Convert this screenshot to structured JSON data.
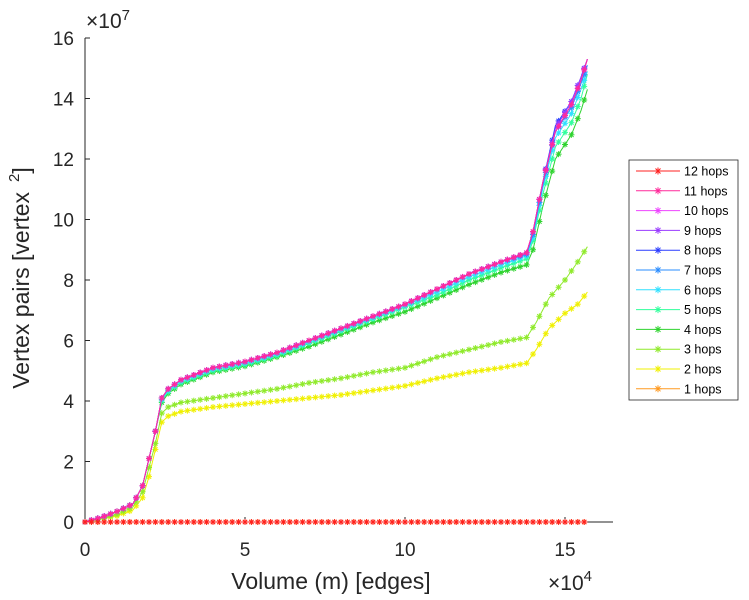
{
  "chart_data": {
    "type": "line",
    "title": "",
    "xlabel": "Volume (m) [edges]",
    "ylabel_main": "Vertex pairs [vertex",
    "ylabel_sup": "2",
    "ylabel_close": "]",
    "x_multiplier_base": "×10",
    "x_multiplier_exp": "4",
    "y_multiplier_base": "×10",
    "y_multiplier_exp": "7",
    "xlim": [
      0,
      16.5
    ],
    "ylim": [
      0,
      16
    ],
    "x_ticks": [
      0,
      5,
      10,
      15
    ],
    "x_tick_labels": [
      "0",
      "5",
      "10",
      "15"
    ],
    "y_ticks": [
      0,
      2,
      4,
      6,
      8,
      10,
      12,
      14,
      16
    ],
    "y_tick_labels": [
      "0",
      "2",
      "4",
      "6",
      "8",
      "10",
      "12",
      "14",
      "16"
    ],
    "grid": false,
    "legend_position": "right",
    "series": [
      {
        "name": "12 hops",
        "color": "#ff2020",
        "x": [
          0,
          1,
          2,
          3,
          4,
          5,
          6,
          7,
          8,
          9,
          10,
          11,
          12,
          13,
          14,
          15,
          15.7
        ],
        "y": [
          0,
          0,
          0,
          0,
          0,
          0,
          0,
          0,
          0,
          0,
          0,
          0,
          0,
          0,
          0,
          0,
          0
        ]
      },
      {
        "name": "11 hops",
        "color": "#ff2a9a",
        "x": [
          0,
          0.5,
          1,
          1.5,
          1.8,
          2.0,
          2.2,
          2.4,
          2.6,
          3,
          4,
          5,
          6,
          7,
          8,
          9,
          10,
          11,
          12,
          13,
          13.8,
          14.0,
          14.3,
          14.7,
          15.2,
          15.5,
          15.7
        ],
        "y": [
          0,
          0.15,
          0.35,
          0.6,
          1.2,
          2.1,
          3.0,
          4.1,
          4.4,
          4.7,
          5.1,
          5.3,
          5.6,
          6.0,
          6.4,
          6.8,
          7.2,
          7.7,
          8.2,
          8.6,
          8.9,
          9.6,
          11.2,
          12.9,
          13.8,
          14.6,
          15.3
        ]
      },
      {
        "name": "10 hops",
        "color": "#ee44ff",
        "x": [
          0,
          0.5,
          1,
          1.5,
          1.8,
          2.0,
          2.2,
          2.4,
          2.6,
          3,
          4,
          5,
          6,
          7,
          8,
          9,
          10,
          11,
          12,
          13,
          13.8,
          14.0,
          14.3,
          14.7,
          15.2,
          15.5,
          15.7
        ],
        "y": [
          0,
          0.15,
          0.35,
          0.6,
          1.2,
          2.1,
          3.0,
          4.1,
          4.4,
          4.7,
          5.1,
          5.3,
          5.6,
          6.0,
          6.4,
          6.8,
          7.2,
          7.7,
          8.2,
          8.6,
          8.9,
          9.6,
          11.2,
          12.9,
          13.8,
          14.6,
          15.3
        ]
      },
      {
        "name": "9 hops",
        "color": "#9a3cff",
        "x": [
          0,
          0.5,
          1,
          1.5,
          1.8,
          2.0,
          2.2,
          2.4,
          2.6,
          3,
          4,
          5,
          6,
          7,
          8,
          9,
          10,
          11,
          12,
          13,
          13.8,
          14.0,
          14.3,
          14.7,
          15.2,
          15.5,
          15.7
        ],
        "y": [
          0,
          0.15,
          0.35,
          0.6,
          1.2,
          2.1,
          3.0,
          4.1,
          4.4,
          4.7,
          5.1,
          5.3,
          5.6,
          6.0,
          6.4,
          6.8,
          7.2,
          7.7,
          8.2,
          8.6,
          8.9,
          9.6,
          11.2,
          13.0,
          13.9,
          14.7,
          15.3
        ]
      },
      {
        "name": "8 hops",
        "color": "#2a3cff",
        "x": [
          0,
          0.5,
          1,
          1.5,
          1.8,
          2.0,
          2.2,
          2.4,
          2.6,
          3,
          4,
          5,
          6,
          7,
          8,
          9,
          10,
          11,
          12,
          13,
          13.8,
          14.0,
          14.3,
          14.7,
          15.2,
          15.5,
          15.7
        ],
        "y": [
          0,
          0.15,
          0.35,
          0.6,
          1.2,
          2.1,
          3.0,
          4.1,
          4.4,
          4.7,
          5.1,
          5.3,
          5.6,
          6.0,
          6.4,
          6.8,
          7.2,
          7.7,
          8.2,
          8.6,
          8.9,
          9.6,
          11.2,
          13.1,
          13.9,
          14.7,
          15.3
        ]
      },
      {
        "name": "7 hops",
        "color": "#2a8cff",
        "x": [
          0,
          0.5,
          1,
          1.5,
          1.8,
          2.0,
          2.2,
          2.4,
          2.6,
          3,
          4,
          5,
          6,
          7,
          8,
          9,
          10,
          11,
          12,
          13,
          13.8,
          14.0,
          14.3,
          14.7,
          15.2,
          15.5,
          15.7
        ],
        "y": [
          0,
          0.15,
          0.35,
          0.6,
          1.2,
          2.1,
          3.0,
          4.1,
          4.4,
          4.7,
          5.1,
          5.3,
          5.6,
          6.0,
          6.4,
          6.8,
          7.2,
          7.7,
          8.2,
          8.6,
          8.85,
          9.5,
          11.1,
          12.9,
          13.7,
          14.5,
          15.1
        ]
      },
      {
        "name": "6 hops",
        "color": "#30e0ff",
        "x": [
          0,
          0.5,
          1,
          1.5,
          1.8,
          2.0,
          2.2,
          2.4,
          2.6,
          3,
          4,
          5,
          6,
          7,
          8,
          9,
          10,
          11,
          12,
          13,
          13.8,
          14.0,
          14.3,
          14.7,
          15.2,
          15.5,
          15.7
        ],
        "y": [
          0,
          0.15,
          0.35,
          0.6,
          1.2,
          2.1,
          3.0,
          4.05,
          4.35,
          4.65,
          5.05,
          5.25,
          5.55,
          5.95,
          6.35,
          6.75,
          7.15,
          7.6,
          8.1,
          8.5,
          8.8,
          9.4,
          11.0,
          12.7,
          13.5,
          14.3,
          14.9
        ]
      },
      {
        "name": "5 hops",
        "color": "#30ff9c",
        "x": [
          0,
          0.5,
          1,
          1.5,
          1.8,
          2.0,
          2.2,
          2.4,
          2.6,
          3,
          4,
          5,
          6,
          7,
          8,
          9,
          10,
          11,
          12,
          13,
          13.8,
          14.0,
          14.3,
          14.7,
          15.2,
          15.5,
          15.7
        ],
        "y": [
          0,
          0.15,
          0.35,
          0.6,
          1.2,
          2.1,
          3.0,
          4.0,
          4.3,
          4.6,
          5.0,
          5.2,
          5.5,
          5.9,
          6.3,
          6.7,
          7.1,
          7.5,
          8.0,
          8.4,
          8.7,
          9.3,
          10.8,
          12.4,
          13.2,
          14.0,
          14.8
        ]
      },
      {
        "name": "4 hops",
        "color": "#2ed32e",
        "x": [
          0,
          0.5,
          1,
          1.5,
          1.8,
          2.0,
          2.2,
          2.4,
          2.6,
          3,
          4,
          5,
          6,
          7,
          8,
          9,
          10,
          11,
          12,
          13,
          13.8,
          14.0,
          14.3,
          14.7,
          15.2,
          15.5,
          15.7
        ],
        "y": [
          0,
          0.15,
          0.35,
          0.6,
          1.2,
          2.1,
          3.0,
          3.95,
          4.25,
          4.55,
          4.95,
          5.15,
          5.45,
          5.8,
          6.2,
          6.6,
          6.95,
          7.4,
          7.85,
          8.25,
          8.5,
          9.0,
          10.4,
          12.0,
          12.8,
          13.6,
          14.3
        ]
      },
      {
        "name": "3 hops",
        "color": "#8fea2a",
        "x": [
          0,
          0.5,
          1,
          1.5,
          1.8,
          2.0,
          2.2,
          2.4,
          2.6,
          3,
          4,
          5,
          6,
          7,
          8,
          9,
          10,
          11,
          12,
          13,
          13.8,
          14.1,
          14.5,
          15.0,
          15.4,
          15.7
        ],
        "y": [
          0,
          0.1,
          0.25,
          0.5,
          1.0,
          1.8,
          2.6,
          3.6,
          3.8,
          3.95,
          4.1,
          4.25,
          4.4,
          4.6,
          4.75,
          4.95,
          5.1,
          5.45,
          5.7,
          5.95,
          6.1,
          6.6,
          7.4,
          8.0,
          8.6,
          9.1
        ]
      },
      {
        "name": "2 hops",
        "color": "#f0f000",
        "x": [
          0,
          0.5,
          1,
          1.5,
          1.8,
          2.0,
          2.2,
          2.4,
          2.6,
          3,
          4,
          5,
          6,
          7,
          8,
          9,
          10,
          11,
          12,
          13,
          13.8,
          14.1,
          14.5,
          15.0,
          15.4,
          15.7
        ],
        "y": [
          0,
          0.1,
          0.2,
          0.4,
          0.8,
          1.5,
          2.4,
          3.3,
          3.5,
          3.65,
          3.8,
          3.9,
          4.0,
          4.1,
          4.2,
          4.35,
          4.5,
          4.75,
          4.95,
          5.1,
          5.25,
          5.7,
          6.4,
          6.9,
          7.2,
          7.6
        ]
      },
      {
        "name": "1 hops",
        "color": "#ff9a20",
        "x": [
          0,
          1,
          2,
          3,
          4,
          5,
          6,
          7,
          8,
          9,
          10,
          11,
          12,
          13,
          14,
          15,
          15.7
        ],
        "y": [
          0,
          0,
          0,
          0,
          0,
          0,
          0,
          0,
          0,
          0,
          0,
          0,
          0,
          0,
          0,
          0,
          0
        ]
      }
    ]
  }
}
